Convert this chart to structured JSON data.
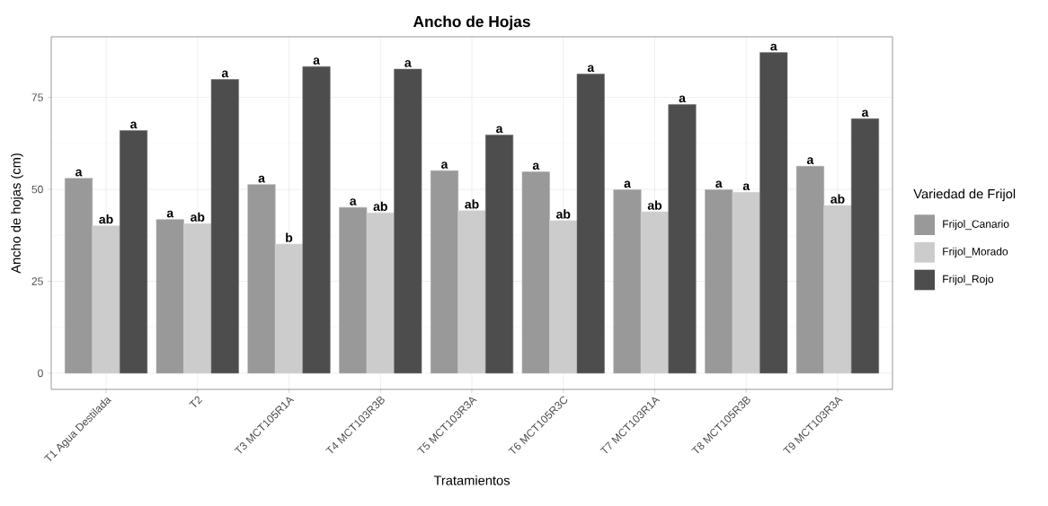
{
  "chart_data": {
    "type": "bar",
    "title": "Ancho de Hojas",
    "xlabel": "Tratamientos",
    "ylabel": "Ancho de hojas (cm)",
    "legend_title": "Variedad de Frijol",
    "categories": [
      "T1 Agua Destilada",
      "T2",
      "T3 MCT105R1A",
      "T4 MCT103R3B",
      "T5 MCT103R3A",
      "T6 MCT105R3C",
      "T7 MCT103R1A",
      "T8 MCT105R3B",
      "T9 MCT103R3A"
    ],
    "series": [
      {
        "name": "Frijol_Canario",
        "color": "#999999",
        "values": [
          53.0,
          41.8,
          51.3,
          45.1,
          55.1,
          54.8,
          49.9,
          49.9,
          56.3
        ],
        "value_labels": [
          "a",
          "a",
          "a",
          "a",
          "a",
          "a",
          "a",
          "a",
          "a"
        ]
      },
      {
        "name": "Frijol_Morado",
        "color": "#cccccc",
        "values": [
          40.1,
          40.7,
          35.1,
          43.6,
          44.2,
          41.5,
          43.9,
          49.2,
          45.6
        ],
        "value_labels": [
          "ab",
          "ab",
          "b",
          "ab",
          "ab",
          "ab",
          "ab",
          "a",
          "ab"
        ]
      },
      {
        "name": "Frijol_Rojo",
        "color": "#4d4d4d",
        "values": [
          66.0,
          79.9,
          83.4,
          82.7,
          64.8,
          81.4,
          73.1,
          87.2,
          69.2
        ],
        "value_labels": [
          "a",
          "a",
          "a",
          "a",
          "a",
          "a",
          "a",
          "a",
          "a"
        ]
      }
    ],
    "ylim": [
      -4.4,
      91.5
    ],
    "yticks": [
      0,
      25,
      50,
      75
    ],
    "grid": true,
    "legend": "right"
  }
}
